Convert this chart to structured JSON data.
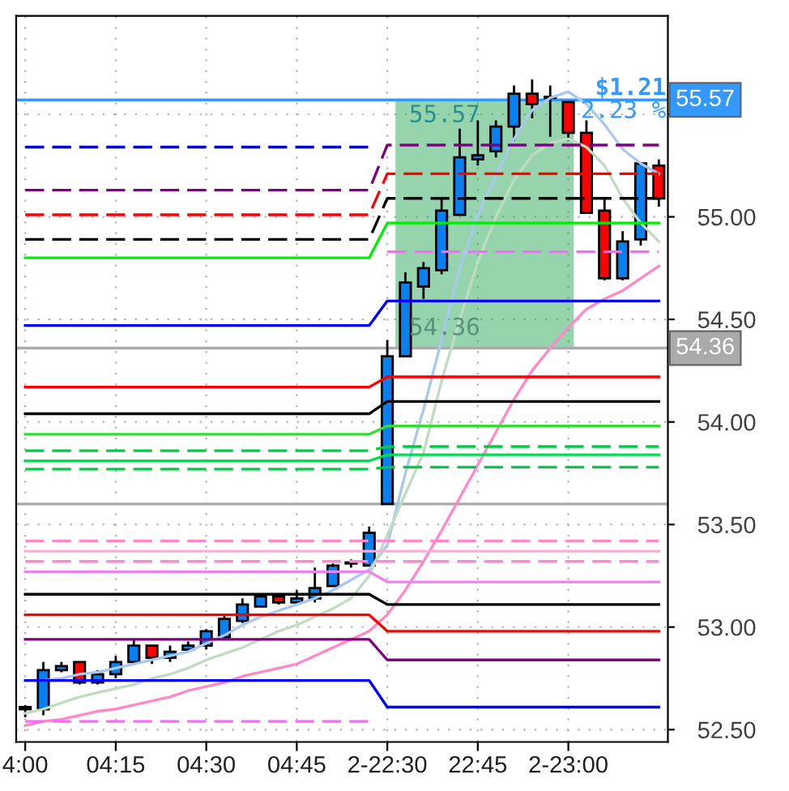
{
  "chart_data": {
    "type": "candlestick",
    "categories": [
      "4:00",
      null,
      null,
      null,
      null,
      "04:15",
      null,
      null,
      null,
      null,
      "04:30",
      null,
      null,
      null,
      null,
      "04:45",
      null,
      null,
      null,
      null,
      "2-22:30",
      null,
      null,
      null,
      null,
      "22:45",
      null,
      null,
      null,
      null,
      "2-23:00",
      null,
      null,
      null,
      null,
      null
    ],
    "ohlc": [
      [
        52.61,
        52.62,
        52.56,
        52.6
      ],
      [
        52.6,
        52.83,
        52.57,
        52.79
      ],
      [
        52.79,
        52.83,
        52.78,
        52.81
      ],
      [
        52.83,
        52.83,
        52.72,
        52.73
      ],
      [
        52.73,
        52.79,
        52.72,
        52.77
      ],
      [
        52.77,
        52.86,
        52.75,
        52.83
      ],
      [
        52.83,
        52.94,
        52.82,
        52.91
      ],
      [
        52.91,
        52.91,
        52.82,
        52.85
      ],
      [
        52.85,
        52.91,
        52.83,
        52.88
      ],
      [
        52.89,
        52.93,
        52.88,
        52.91
      ],
      [
        52.91,
        52.99,
        52.89,
        52.98
      ],
      [
        52.95,
        53.06,
        52.94,
        53.04
      ],
      [
        53.03,
        53.14,
        53.02,
        53.11
      ],
      [
        53.1,
        53.16,
        53.1,
        53.15
      ],
      [
        53.15,
        53.16,
        53.11,
        53.12
      ],
      [
        53.12,
        53.18,
        53.11,
        53.14
      ],
      [
        53.14,
        53.29,
        53.12,
        53.19
      ],
      [
        53.2,
        53.31,
        53.2,
        53.3
      ],
      [
        53.31,
        53.33,
        53.29,
        53.31
      ],
      [
        53.3,
        53.49,
        53.3,
        53.46
      ],
      [
        53.6,
        54.4,
        53.6,
        54.32
      ],
      [
        54.32,
        54.73,
        54.32,
        54.68
      ],
      [
        54.66,
        54.78,
        54.6,
        54.75
      ],
      [
        54.74,
        55.09,
        54.72,
        55.03
      ],
      [
        55.01,
        55.43,
        55.01,
        55.29
      ],
      [
        55.28,
        55.47,
        55.25,
        55.3
      ],
      [
        55.32,
        55.47,
        55.29,
        55.44
      ],
      [
        55.44,
        55.64,
        55.37,
        55.6
      ],
      [
        55.6,
        55.67,
        55.48,
        55.55
      ],
      [
        55.58,
        55.64,
        55.39,
        55.58
      ],
      [
        55.56,
        55.56,
        55.37,
        55.41
      ],
      [
        55.41,
        55.47,
        55.02,
        55.02
      ],
      [
        55.03,
        55.09,
        54.69,
        54.7
      ],
      [
        54.7,
        54.93,
        54.69,
        54.88
      ],
      [
        54.89,
        55.26,
        54.86,
        55.26
      ],
      [
        55.25,
        55.28,
        55.05,
        55.09
      ]
    ],
    "colors": [
      "#ff0000",
      "#0a7ff0",
      "#0a7ff0",
      "#ff0000",
      "#0a7ff0",
      "#0a7ff0",
      "#0a7ff0",
      "#ff0000",
      "#0a7ff0",
      "#0a7ff0",
      "#0a7ff0",
      "#0a7ff0",
      "#0a7ff0",
      "#0a7ff0",
      "#ff0000",
      "#0a7ff0",
      "#0a7ff0",
      "#0a7ff0",
      "#0a7ff0",
      "#0a7ff0",
      "#0a7ff0",
      "#0a7ff0",
      "#0a7ff0",
      "#0a7ff0",
      "#0a7ff0",
      "#0a7ff0",
      "#0a7ff0",
      "#0a7ff0",
      "#ff0000",
      "#ff0000",
      "#ff0000",
      "#ff0000",
      "#ff0000",
      "#0a7ff0",
      "#0a7ff0",
      "#ff0000"
    ],
    "series": [
      {
        "type": "line",
        "color": "#a8c8f0",
        "values": [
          null,
          52.74,
          52.75,
          52.77,
          52.78,
          52.8,
          52.82,
          52.84,
          52.86,
          52.88,
          52.92,
          52.96,
          53.01,
          53.05,
          53.08,
          53.11,
          53.14,
          53.18,
          53.23,
          53.28,
          53.4,
          53.75,
          54.06,
          54.4,
          54.75,
          55.01,
          55.2,
          55.38,
          55.52,
          55.58,
          55.61,
          55.55,
          55.45,
          55.33,
          55.26,
          55.21
        ]
      },
      {
        "type": "line",
        "color": "#c0dcc0",
        "values": [
          52.58,
          52.6,
          52.63,
          52.66,
          52.68,
          52.7,
          52.72,
          52.75,
          52.77,
          52.8,
          52.84,
          52.87,
          52.9,
          52.94,
          52.98,
          53.01,
          53.05,
          53.09,
          53.14,
          53.25,
          53.45,
          53.65,
          53.85,
          54.2,
          54.5,
          54.78,
          55.0,
          55.18,
          55.3,
          55.36,
          55.38,
          55.34,
          55.25,
          55.09,
          54.97,
          54.88
        ]
      },
      {
        "type": "line",
        "color": "#ff88c8",
        "values": [
          52.52,
          52.54,
          52.55,
          52.57,
          52.59,
          52.6,
          52.62,
          52.64,
          52.66,
          52.69,
          52.71,
          52.73,
          52.76,
          52.78,
          52.8,
          52.82,
          52.86,
          52.9,
          52.94,
          52.98,
          53.06,
          53.18,
          53.32,
          53.47,
          53.63,
          53.79,
          53.95,
          54.11,
          54.25,
          54.36,
          54.46,
          54.55,
          54.6,
          54.64,
          54.7,
          54.76
        ]
      },
      {
        "type": "line",
        "color": "#0000ff",
        "values": [
          54.47,
          54.47,
          54.47,
          54.47,
          54.47,
          54.47,
          54.47,
          54.47,
          54.47,
          54.47,
          54.47,
          54.47,
          54.47,
          54.47,
          54.47,
          54.47,
          54.47,
          54.47,
          54.47,
          54.47,
          54.59,
          54.59,
          54.59,
          54.59,
          54.59,
          54.59,
          54.59,
          54.59,
          54.59,
          54.59,
          54.59,
          54.59,
          54.59,
          54.59,
          54.59,
          54.59
        ]
      },
      {
        "type": "line",
        "color": "#800080",
        "line_style": "dashed",
        "values": [
          55.13,
          55.13,
          55.13,
          55.13,
          55.13,
          55.13,
          55.13,
          55.13,
          55.13,
          55.13,
          55.13,
          55.13,
          55.13,
          55.13,
          55.13,
          55.13,
          55.13,
          55.13,
          55.13,
          55.13,
          55.35,
          55.35,
          55.35,
          55.35,
          55.35,
          55.35,
          55.35,
          55.35,
          55.35,
          55.35,
          55.35,
          55.35,
          55.35,
          55.35,
          55.35,
          55.35
        ]
      },
      {
        "type": "line",
        "color": "#ff0000",
        "line_style": "dashed",
        "values": [
          55.01,
          55.01,
          55.01,
          55.01,
          55.01,
          55.01,
          55.01,
          55.01,
          55.01,
          55.01,
          55.01,
          55.01,
          55.01,
          55.01,
          55.01,
          55.01,
          55.01,
          55.01,
          55.01,
          55.01,
          55.21,
          55.21,
          55.21,
          55.21,
          55.21,
          55.21,
          55.21,
          55.21,
          55.21,
          55.21,
          55.21,
          55.21,
          55.21,
          55.21,
          55.21,
          55.21
        ]
      },
      {
        "type": "line",
        "color": "#000000",
        "line_style": "dashed",
        "values": [
          54.89,
          54.89,
          54.89,
          54.89,
          54.89,
          54.89,
          54.89,
          54.89,
          54.89,
          54.89,
          54.89,
          54.89,
          54.89,
          54.89,
          54.89,
          54.89,
          54.89,
          54.89,
          54.89,
          54.89,
          55.09,
          55.09,
          55.09,
          55.09,
          55.09,
          55.09,
          55.09,
          55.09,
          55.09,
          55.09,
          55.09,
          55.09,
          55.09,
          55.09,
          55.09,
          55.09
        ]
      },
      {
        "type": "line",
        "color": "#00ee00",
        "values": [
          54.8,
          54.8,
          54.8,
          54.8,
          54.8,
          54.8,
          54.8,
          54.8,
          54.8,
          54.8,
          54.8,
          54.8,
          54.8,
          54.8,
          54.8,
          54.8,
          54.8,
          54.8,
          54.8,
          54.8,
          54.97,
          54.97,
          54.97,
          54.97,
          54.97,
          54.97,
          54.97,
          54.97,
          54.97,
          54.97,
          54.97,
          54.97,
          54.97,
          54.97,
          54.97,
          54.97
        ]
      },
      {
        "type": "line",
        "color": "#ff66ff",
        "line_style": "dashed",
        "values": [
          null,
          null,
          null,
          null,
          null,
          null,
          null,
          null,
          null,
          null,
          null,
          null,
          null,
          null,
          null,
          null,
          null,
          null,
          null,
          null,
          54.83,
          54.83,
          54.83,
          54.83,
          54.83,
          54.83,
          54.83,
          54.83,
          54.83,
          54.83,
          54.83,
          54.83,
          54.83,
          54.83,
          54.83,
          54.83
        ]
      },
      {
        "type": "line",
        "color": "#0000cd",
        "line_style": "dashed",
        "values": [
          55.34,
          55.34,
          55.34,
          55.34,
          55.34,
          55.34,
          55.34,
          55.34,
          55.34,
          55.34,
          55.34,
          55.34,
          55.34,
          55.34,
          55.34,
          55.34,
          55.34,
          55.34,
          55.34,
          55.34,
          null,
          null,
          null,
          null,
          null,
          null,
          null,
          null,
          null,
          null,
          null,
          null,
          null,
          null,
          null,
          null
        ]
      },
      {
        "type": "line",
        "color": "#ff0000",
        "values": [
          54.17,
          54.17,
          54.17,
          54.17,
          54.17,
          54.17,
          54.17,
          54.17,
          54.17,
          54.17,
          54.17,
          54.17,
          54.17,
          54.17,
          54.17,
          54.17,
          54.17,
          54.17,
          54.17,
          54.17,
          54.22,
          54.22,
          54.22,
          54.22,
          54.22,
          54.22,
          54.22,
          54.22,
          54.22,
          54.22,
          54.22,
          54.22,
          54.22,
          54.22,
          54.22,
          54.22
        ]
      },
      {
        "type": "line",
        "color": "#000000",
        "values": [
          54.04,
          54.04,
          54.04,
          54.04,
          54.04,
          54.04,
          54.04,
          54.04,
          54.04,
          54.04,
          54.04,
          54.04,
          54.04,
          54.04,
          54.04,
          54.04,
          54.04,
          54.04,
          54.04,
          54.04,
          54.1,
          54.1,
          54.1,
          54.1,
          54.1,
          54.1,
          54.1,
          54.1,
          54.1,
          54.1,
          54.1,
          54.1,
          54.1,
          54.1,
          54.1,
          54.1
        ]
      },
      {
        "type": "line",
        "color": "#33dd33",
        "values": [
          53.94,
          53.94,
          53.94,
          53.94,
          53.94,
          53.94,
          53.94,
          53.94,
          53.94,
          53.94,
          53.94,
          53.94,
          53.94,
          53.94,
          53.94,
          53.94,
          53.94,
          53.94,
          53.94,
          53.94,
          53.98,
          53.98,
          53.98,
          53.98,
          53.98,
          53.98,
          53.98,
          53.98,
          53.98,
          53.98,
          53.98,
          53.98,
          53.98,
          53.98,
          53.98,
          53.98
        ]
      },
      {
        "type": "line",
        "color": "#00cc44",
        "line_style": "dashed",
        "values": [
          53.86,
          53.86,
          53.86,
          53.86,
          53.86,
          53.86,
          53.86,
          53.86,
          53.86,
          53.86,
          53.86,
          53.86,
          53.86,
          53.86,
          53.86,
          53.86,
          53.86,
          53.86,
          53.86,
          53.86,
          53.88,
          53.88,
          53.88,
          53.88,
          53.88,
          53.88,
          53.88,
          53.88,
          53.88,
          53.88,
          53.88,
          53.88,
          53.88,
          53.88,
          53.88,
          53.88
        ]
      },
      {
        "type": "line",
        "color": "#00dd55",
        "values": [
          53.81,
          53.81,
          53.81,
          53.81,
          53.81,
          53.81,
          53.81,
          53.81,
          53.81,
          53.81,
          53.81,
          53.81,
          53.81,
          53.81,
          53.81,
          53.81,
          53.81,
          53.81,
          53.81,
          53.81,
          53.84,
          53.84,
          53.84,
          53.84,
          53.84,
          53.84,
          53.84,
          53.84,
          53.84,
          53.84,
          53.84,
          53.84,
          53.84,
          53.84,
          53.84,
          53.84
        ]
      },
      {
        "type": "line",
        "color": "#00cc44",
        "line_style": "dashed",
        "values": [
          53.77,
          53.77,
          53.77,
          53.77,
          53.77,
          53.77,
          53.77,
          53.77,
          53.77,
          53.77,
          53.77,
          53.77,
          53.77,
          53.77,
          53.77,
          53.77,
          53.77,
          53.77,
          53.77,
          53.77,
          53.78,
          53.78,
          53.78,
          53.78,
          53.78,
          53.78,
          53.78,
          53.78,
          53.78,
          53.78,
          53.78,
          53.78,
          53.78,
          53.78,
          53.78,
          53.78
        ]
      },
      {
        "type": "line",
        "color": "#ff88cc",
        "line_style": "dashed",
        "values": [
          53.42,
          53.42,
          53.42,
          53.42,
          53.42,
          53.42,
          53.42,
          53.42,
          53.42,
          53.42,
          53.42,
          53.42,
          53.42,
          53.42,
          53.42,
          53.42,
          53.42,
          53.42,
          53.42,
          53.42,
          53.42,
          53.42,
          53.42,
          53.42,
          53.42,
          53.42,
          53.42,
          53.42,
          53.42,
          53.42,
          53.42,
          53.42,
          53.42,
          53.42,
          53.42,
          53.42
        ]
      },
      {
        "type": "line",
        "color": "#ffaad4",
        "values": [
          53.37,
          53.37,
          53.37,
          53.37,
          53.37,
          53.37,
          53.37,
          53.37,
          53.37,
          53.37,
          53.37,
          53.37,
          53.37,
          53.37,
          53.37,
          53.37,
          53.37,
          53.37,
          53.37,
          53.37,
          53.37,
          53.37,
          53.37,
          53.37,
          53.37,
          53.37,
          53.37,
          53.37,
          53.37,
          53.37,
          53.37,
          53.37,
          53.37,
          53.37,
          53.37,
          53.37
        ]
      },
      {
        "type": "line",
        "color": "#ff88cc",
        "line_style": "dashed",
        "values": [
          53.32,
          53.32,
          53.32,
          53.32,
          53.32,
          53.32,
          53.32,
          53.32,
          53.32,
          53.32,
          53.32,
          53.32,
          53.32,
          53.32,
          53.32,
          53.32,
          53.32,
          53.32,
          53.32,
          53.32,
          53.32,
          53.32,
          53.32,
          53.32,
          53.32,
          53.32,
          53.32,
          53.32,
          53.32,
          53.32,
          53.32,
          53.32,
          53.32,
          53.32,
          53.32,
          53.32
        ]
      },
      {
        "type": "line",
        "color": "#ee82ee",
        "values": [
          53.27,
          53.27,
          53.27,
          53.27,
          53.27,
          53.27,
          53.27,
          53.27,
          53.27,
          53.27,
          53.27,
          53.27,
          53.27,
          53.27,
          53.27,
          53.27,
          53.27,
          53.27,
          53.27,
          53.27,
          53.22,
          53.22,
          53.22,
          53.22,
          53.22,
          53.22,
          53.22,
          53.22,
          53.22,
          53.22,
          53.22,
          53.22,
          53.22,
          53.22,
          53.22,
          53.22
        ]
      },
      {
        "type": "line",
        "color": "#000000",
        "values": [
          53.16,
          53.16,
          53.16,
          53.16,
          53.16,
          53.16,
          53.16,
          53.16,
          53.16,
          53.16,
          53.16,
          53.16,
          53.16,
          53.16,
          53.16,
          53.16,
          53.16,
          53.16,
          53.16,
          53.16,
          53.11,
          53.11,
          53.11,
          53.11,
          53.11,
          53.11,
          53.11,
          53.11,
          53.11,
          53.11,
          53.11,
          53.11,
          53.11,
          53.11,
          53.11,
          53.11
        ]
      },
      {
        "type": "line",
        "color": "#ff0000",
        "values": [
          53.06,
          53.06,
          53.06,
          53.06,
          53.06,
          53.06,
          53.06,
          53.06,
          53.06,
          53.06,
          53.06,
          53.06,
          53.06,
          53.06,
          53.06,
          53.06,
          53.06,
          53.06,
          53.06,
          53.06,
          52.98,
          52.98,
          52.98,
          52.98,
          52.98,
          52.98,
          52.98,
          52.98,
          52.98,
          52.98,
          52.98,
          52.98,
          52.98,
          52.98,
          52.98,
          52.98
        ]
      },
      {
        "type": "line",
        "color": "#800080",
        "values": [
          52.94,
          52.94,
          52.94,
          52.94,
          52.94,
          52.94,
          52.94,
          52.94,
          52.94,
          52.94,
          52.94,
          52.94,
          52.94,
          52.94,
          52.94,
          52.94,
          52.94,
          52.94,
          52.94,
          52.94,
          52.84,
          52.84,
          52.84,
          52.84,
          52.84,
          52.84,
          52.84,
          52.84,
          52.84,
          52.84,
          52.84,
          52.84,
          52.84,
          52.84,
          52.84,
          52.84
        ]
      },
      {
        "type": "line",
        "color": "#0000ff",
        "values": [
          52.74,
          52.74,
          52.74,
          52.74,
          52.74,
          52.74,
          52.74,
          52.74,
          52.74,
          52.74,
          52.74,
          52.74,
          52.74,
          52.74,
          52.74,
          52.74,
          52.74,
          52.74,
          52.74,
          52.74,
          52.61,
          52.61,
          52.61,
          52.61,
          52.61,
          52.61,
          52.61,
          52.61,
          52.61,
          52.61,
          52.61,
          52.61,
          52.61,
          52.61,
          52.61,
          52.61
        ]
      },
      {
        "type": "line",
        "color": "#ff66ff",
        "line_style": "dashed",
        "values": [
          52.54,
          52.54,
          52.54,
          52.54,
          52.54,
          52.54,
          52.54,
          52.54,
          52.54,
          52.54,
          52.54,
          52.54,
          52.54,
          52.54,
          52.54,
          52.54,
          52.54,
          52.54,
          52.54,
          52.54,
          null,
          null,
          null,
          null,
          null,
          null,
          null,
          null,
          null,
          null,
          null,
          null,
          null,
          null,
          null,
          null
        ]
      }
    ],
    "ref_lines": [
      {
        "axis": "y",
        "value": 55.57,
        "label": "55.57",
        "color": "#3399ff"
      },
      {
        "axis": "y",
        "value": 54.36,
        "label": "54.36",
        "color": "#aaaaaa"
      },
      {
        "axis": "y",
        "value": 53.6,
        "color": "#aaaaaa"
      }
    ],
    "annotations": [
      "55.57",
      "54.36",
      "$1.21",
      "2.23 %"
    ],
    "ylim": [
      52.44,
      55.98
    ],
    "yticks": [
      {
        "value": 52.5,
        "label": "52.50"
      },
      {
        "value": 53.0,
        "label": "53.00"
      },
      {
        "value": 53.5,
        "label": "53.50"
      },
      {
        "value": 54.0,
        "label": "54.00"
      },
      {
        "value": 54.5,
        "label": "54.50"
      },
      {
        "value": 55.0,
        "label": "55.00"
      },
      {
        "value": 55.5,
        "label": null
      }
    ],
    "grid": true
  }
}
